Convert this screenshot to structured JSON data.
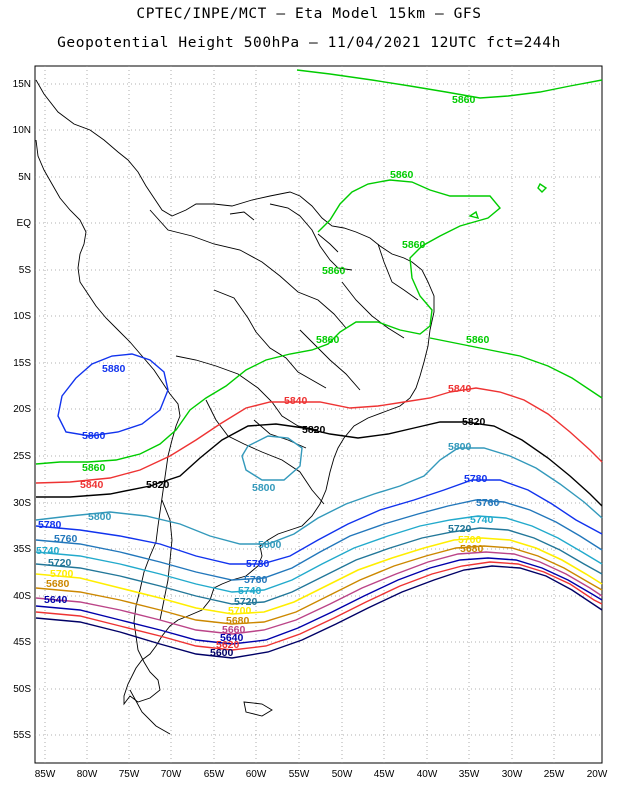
{
  "header": {
    "line1": "CPTEC/INPE/MCT –  Eta Model 15km – GFS",
    "line2": "Geopotential Height 500hPa – 11/04/2021 12UTC fct=244h"
  },
  "axes": {
    "lon_labels": [
      "85W",
      "80W",
      "75W",
      "70W",
      "65W",
      "60W",
      "55W",
      "50W",
      "45W",
      "40W",
      "35W",
      "30W",
      "25W",
      "20W"
    ],
    "lat_labels": [
      "15N",
      "10N",
      "5N",
      "EQ",
      "5S",
      "10S",
      "15S",
      "20S",
      "25S",
      "30S",
      "35S",
      "40S",
      "45S",
      "50S",
      "55S"
    ]
  },
  "colors": {
    "c5860": "#00cc00",
    "c5840": "#ee3333",
    "c5820": "#000000",
    "c5800": "#3399bb",
    "c5780": "#1133ee",
    "c5760": "#2277bb",
    "c5740": "#22aacc",
    "c5720": "#227799",
    "c5700": "#ffee00",
    "c5680": "#cc8800",
    "c5660": "#bb4488",
    "c5640": "#0000aa",
    "c5600": "#000066",
    "land": "#000000",
    "grid": "#999999"
  },
  "contour_labels": {
    "l5860_n": "5860",
    "l5860_ne1": "5860",
    "l5860_ne2": "5860",
    "l5860_amz": "5860",
    "l5860_c": "5860",
    "l5860_e": "5860",
    "l5860_w": "5860",
    "l5880_pac": "5880",
    "l5860_pac": "5860",
    "l5840_e": "5840",
    "l5840_c": "5840",
    "l5840_w": "5840",
    "l5820_e": "5820",
    "l5820_c": "5820",
    "l5820_w": "5820",
    "l5800_e": "5800",
    "l5800_py": "5800",
    "l5800_w": "5800",
    "l5800_ar": "5800",
    "l5780_e": "5780",
    "l5780_w": "5780",
    "l5780_ar": "5780",
    "l5760_e": "5760",
    "l5760_w": "5760",
    "l5760_ar": "5760",
    "l5740_e": "5740",
    "l5740_w": "5740",
    "l5740_ar": "5740",
    "l5720_e": "5720",
    "l5720_w": "5720",
    "l5720_ar": "5720",
    "l5700_e": "5700",
    "l5700_w": "5700",
    "l5700_ar": "5700",
    "l5680_e": "5680",
    "l5680_w": "5680",
    "l5680_ar": "5680",
    "l5660_ar": "5660",
    "l5640_w": "5640",
    "l5640_ar": "5640",
    "l5620_ar": "5620",
    "l5600_ar": "5600"
  }
}
